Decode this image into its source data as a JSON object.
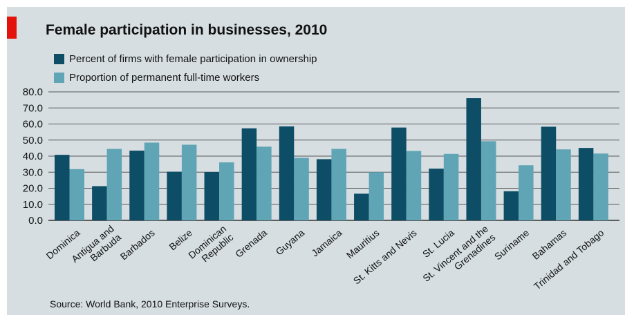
{
  "chart_data": {
    "type": "bar",
    "title": "Female participation in businesses, 2010",
    "source": "Source: World Bank, 2010 Enterprise Surveys.",
    "xlabel": "",
    "ylabel": "",
    "ylim": [
      0,
      80
    ],
    "yticks": [
      "80.0",
      "70.0",
      "60.0",
      "50.0",
      "40.0",
      "30.0",
      "20.0",
      "10.0",
      "0.0"
    ],
    "grid": true,
    "legend_position": "top-left",
    "categories": [
      "Dominica",
      "Antigua and\nBarbuda",
      "Barbados",
      "Belize",
      "Dominican\nRepublic",
      "Grenada",
      "Guyana",
      "Jamaica",
      "Mauritius",
      "St. Kitts and Nevis",
      "St. Lucia",
      "St. Vincent and the\nGrenadines",
      "Suriname",
      "Bahamas",
      "Trinidad and Tobago"
    ],
    "series": [
      {
        "name": "Percent of firms with female participation in ownership",
        "color": "#0e4d66",
        "values": [
          40.8,
          21.3,
          43.4,
          30.3,
          30.1,
          57.3,
          58.5,
          38.1,
          16.6,
          57.8,
          32.2,
          76.1,
          18.1,
          58.3,
          45.1
        ]
      },
      {
        "name": "Proportion of permanent full-time workers",
        "color": "#60a5b5",
        "values": [
          31.9,
          44.5,
          48.4,
          47.1,
          36.1,
          45.9,
          38.9,
          44.5,
          30.0,
          43.2,
          41.4,
          49.3,
          34.3,
          44.2,
          41.6
        ]
      }
    ]
  }
}
